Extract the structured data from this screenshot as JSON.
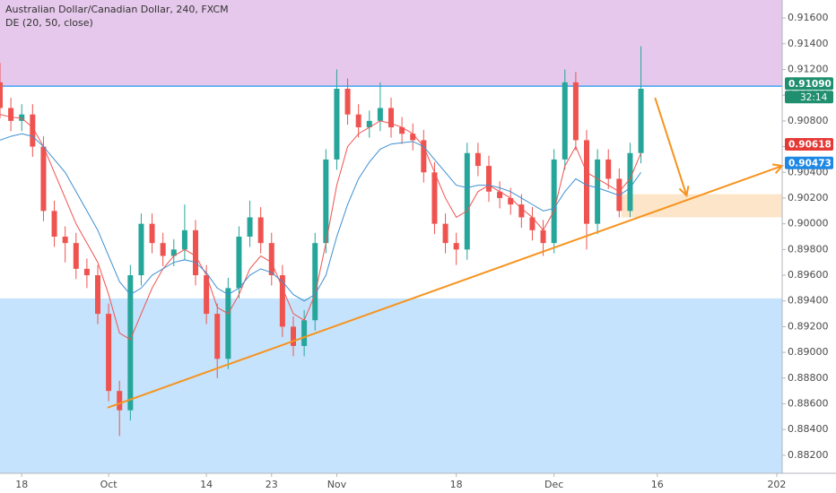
{
  "chart_data": {
    "type": "candlestick",
    "title": "Australian Dollar/Canadian Dollar, 240, FXCM",
    "subtitle": "DE (20, 50, close)",
    "up_color": "#26a69a",
    "down_color": "#ef5350",
    "x": [
      0,
      1,
      2,
      3,
      4,
      5,
      6,
      7,
      8,
      9,
      10,
      11,
      12,
      13,
      14,
      15,
      16,
      17,
      18,
      19,
      20,
      21,
      22,
      23,
      24,
      25,
      26,
      27,
      28,
      29,
      30,
      31,
      32,
      33,
      34,
      35,
      36,
      37,
      38,
      39,
      40,
      41,
      42,
      43,
      44,
      45,
      46,
      47,
      48,
      49,
      50,
      51,
      52,
      53,
      54,
      55,
      56,
      57,
      58,
      59
    ],
    "open": [
      0.911,
      0.909,
      0.908,
      0.9085,
      0.906,
      0.901,
      0.899,
      0.8985,
      0.8965,
      0.896,
      0.893,
      0.887,
      0.8855,
      0.896,
      0.9,
      0.8985,
      0.8975,
      0.898,
      0.8995,
      0.896,
      0.893,
      0.8895,
      0.895,
      0.899,
      0.9005,
      0.8985,
      0.896,
      0.892,
      0.8905,
      0.8925,
      0.8985,
      0.905,
      0.9105,
      0.9085,
      0.9075,
      0.908,
      0.909,
      0.9075,
      0.907,
      0.9065,
      0.904,
      0.9,
      0.8985,
      0.898,
      0.9055,
      0.9045,
      0.9025,
      0.902,
      0.9015,
      0.9005,
      0.8995,
      0.8985,
      0.905,
      0.911,
      0.9065,
      0.9,
      0.905,
      0.9035,
      0.901,
      0.9055
    ],
    "high": [
      0.9125,
      0.9098,
      0.9093,
      0.9093,
      0.9068,
      0.9018,
      0.8998,
      0.8993,
      0.8973,
      0.8968,
      0.8938,
      0.8878,
      0.8968,
      0.9008,
      0.9008,
      0.8993,
      0.8988,
      0.9015,
      0.9003,
      0.8968,
      0.8938,
      0.8958,
      0.8998,
      0.9018,
      0.9013,
      0.8993,
      0.8968,
      0.8928,
      0.8933,
      0.8993,
      0.9058,
      0.912,
      0.9113,
      0.9093,
      0.9088,
      0.911,
      0.9098,
      0.9083,
      0.9078,
      0.9073,
      0.9048,
      0.9008,
      0.8993,
      0.9063,
      0.9063,
      0.9053,
      0.9033,
      0.9028,
      0.9023,
      0.9013,
      0.9003,
      0.9058,
      0.912,
      0.9118,
      0.9073,
      0.9058,
      0.9058,
      0.9043,
      0.9063,
      0.9138
    ],
    "low": [
      0.9082,
      0.9072,
      0.9072,
      0.9052,
      0.9002,
      0.8982,
      0.897,
      0.8957,
      0.895,
      0.8922,
      0.8862,
      0.8835,
      0.8847,
      0.8952,
      0.8977,
      0.8967,
      0.8967,
      0.8972,
      0.8952,
      0.8922,
      0.888,
      0.8887,
      0.8942,
      0.8982,
      0.8977,
      0.8952,
      0.8912,
      0.8897,
      0.8897,
      0.8917,
      0.8977,
      0.9042,
      0.9077,
      0.9067,
      0.9067,
      0.9072,
      0.9067,
      0.9062,
      0.9057,
      0.9032,
      0.8992,
      0.8977,
      0.8968,
      0.8972,
      0.9037,
      0.9017,
      0.9012,
      0.9007,
      0.8997,
      0.8987,
      0.8975,
      0.8977,
      0.9042,
      0.9057,
      0.898,
      0.8992,
      0.9027,
      0.9005,
      0.9005,
      0.9047
    ],
    "close": [
      0.909,
      0.908,
      0.9085,
      0.906,
      0.901,
      0.899,
      0.8985,
      0.8965,
      0.896,
      0.893,
      0.887,
      0.8855,
      0.896,
      0.9,
      0.8985,
      0.8975,
      0.898,
      0.8995,
      0.896,
      0.893,
      0.8895,
      0.895,
      0.899,
      0.9005,
      0.8985,
      0.896,
      0.892,
      0.8905,
      0.8925,
      0.8985,
      0.905,
      0.9105,
      0.9085,
      0.9075,
      0.908,
      0.909,
      0.9075,
      0.907,
      0.9065,
      0.904,
      0.9,
      0.8985,
      0.898,
      0.9055,
      0.9045,
      0.9025,
      0.902,
      0.9015,
      0.9005,
      0.8995,
      0.8985,
      0.905,
      0.911,
      0.9065,
      0.9,
      0.905,
      0.9035,
      0.901,
      0.9055,
      0.9105
    ],
    "lines": [
      {
        "color": "#ef5350",
        "values": [
          0.9085,
          0.9083,
          0.9082,
          0.9075,
          0.906,
          0.904,
          0.902,
          0.9,
          0.8985,
          0.897,
          0.8945,
          0.8915,
          0.891,
          0.893,
          0.895,
          0.8965,
          0.8975,
          0.898,
          0.8975,
          0.896,
          0.8935,
          0.893,
          0.8945,
          0.8965,
          0.8975,
          0.897,
          0.895,
          0.893,
          0.8925,
          0.8945,
          0.8985,
          0.903,
          0.906,
          0.907,
          0.9075,
          0.908,
          0.9078,
          0.9075,
          0.907,
          0.906,
          0.904,
          0.902,
          0.9005,
          0.901,
          0.9025,
          0.903,
          0.9025,
          0.902,
          0.9012,
          0.9005,
          0.8995,
          0.901,
          0.9045,
          0.906,
          0.904,
          0.9035,
          0.903,
          0.9025,
          0.9035,
          0.9055
        ]
      },
      {
        "color": "#3d8fd1",
        "values": [
          0.9065,
          0.9068,
          0.907,
          0.9068,
          0.906,
          0.905,
          0.904,
          0.9025,
          0.901,
          0.8995,
          0.8975,
          0.8955,
          0.8945,
          0.895,
          0.896,
          0.8965,
          0.897,
          0.8972,
          0.897,
          0.8962,
          0.895,
          0.8945,
          0.895,
          0.896,
          0.8965,
          0.8962,
          0.8955,
          0.8945,
          0.894,
          0.8945,
          0.896,
          0.899,
          0.9015,
          0.9035,
          0.9048,
          0.9058,
          0.9062,
          0.9063,
          0.9064,
          0.906,
          0.905,
          0.904,
          0.903,
          0.9028,
          0.903,
          0.903,
          0.9028,
          0.9025,
          0.902,
          0.9015,
          0.901,
          0.9012,
          0.9025,
          0.9035,
          0.903,
          0.9028,
          0.9025,
          0.9022,
          0.9028,
          0.904
        ]
      }
    ],
    "xlim": [
      0,
      72
    ],
    "xticks": [
      {
        "value": 2,
        "label": "18"
      },
      {
        "value": 10,
        "label": "Oct"
      },
      {
        "value": 19,
        "label": "14"
      },
      {
        "value": 25,
        "label": "23"
      },
      {
        "value": 31,
        "label": "Nov"
      },
      {
        "value": 42,
        "label": "18"
      },
      {
        "value": 51,
        "label": "Dec"
      },
      {
        "value": 60.5,
        "label": "16"
      },
      {
        "value": 71.5,
        "label": "202"
      }
    ],
    "ylim": [
      0.8806,
      0.9174
    ],
    "yticks": [
      {
        "value": 0.916,
        "label": "0.91600"
      },
      {
        "value": 0.914,
        "label": "0.91400"
      },
      {
        "value": 0.912,
        "label": "0.91200"
      },
      {
        "value": 0.91,
        "label": "0.91000"
      },
      {
        "value": 0.908,
        "label": "0.90800"
      },
      {
        "value": 0.906,
        "label": "0.90600"
      },
      {
        "value": 0.904,
        "label": "0.90400"
      },
      {
        "value": 0.902,
        "label": "0.90200"
      },
      {
        "value": 0.9,
        "label": "0.90000"
      },
      {
        "value": 0.898,
        "label": "0.89800"
      },
      {
        "value": 0.896,
        "label": "0.89600"
      },
      {
        "value": 0.894,
        "label": "0.89400"
      },
      {
        "value": 0.892,
        "label": "0.89200"
      },
      {
        "value": 0.89,
        "label": "0.89000"
      },
      {
        "value": 0.888,
        "label": "0.88800"
      },
      {
        "value": 0.886,
        "label": "0.88600"
      },
      {
        "value": 0.884,
        "label": "0.88400"
      },
      {
        "value": 0.882,
        "label": "0.88200"
      }
    ],
    "zones": [
      {
        "color": "#e1bee7",
        "y": [
          0.9107,
          0.9174
        ]
      },
      {
        "color": "#bbdefb",
        "y": [
          0.8806,
          0.8942
        ]
      },
      {
        "color": "#fbe0c0",
        "x": [
          57.2,
          72
        ],
        "y": [
          0.9005,
          0.9023
        ]
      }
    ],
    "hline": {
      "color": "#2196f3",
      "value": 0.9107
    },
    "trendline": {
      "color": "#f7931e",
      "x": [
        9.9,
        72
      ],
      "y": [
        0.8857,
        0.9045
      ]
    },
    "arrow": {
      "color": "#f7931e",
      "x": [
        60.3,
        63.2
      ],
      "y": [
        0.9098,
        0.9022
      ]
    },
    "price_labels": [
      {
        "value": 0.9109,
        "label": "0.91090",
        "color": "#1f8f6f"
      },
      {
        "value": 0.90618,
        "label": "0.90618",
        "color": "#e53935"
      },
      {
        "value": 0.90473,
        "label": "0.90473",
        "color": "#1e88e5"
      }
    ],
    "countdown": "32:14"
  }
}
